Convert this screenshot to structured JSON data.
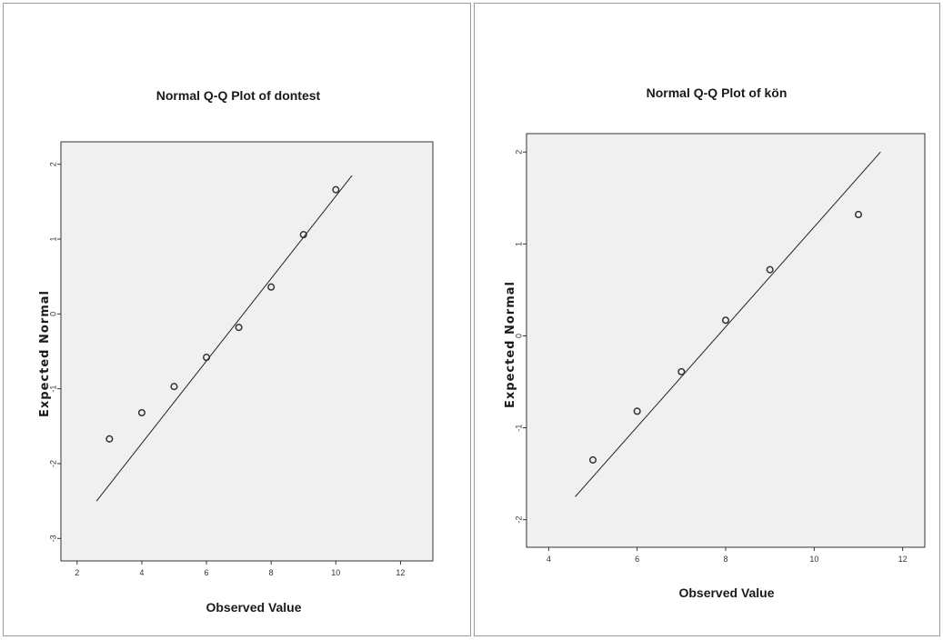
{
  "charts": [
    {
      "title": "Normal Q-Q Plot of dontest",
      "xlabel": "Observed Value",
      "ylabel": "Expected Normal",
      "x_ticks": [
        "2",
        "4",
        "6",
        "8",
        "10",
        "12"
      ],
      "y_ticks": [
        "2",
        "1",
        "0",
        "-1",
        "-2",
        "-3"
      ]
    },
    {
      "title": "Normal Q-Q Plot of kön",
      "xlabel": "Observed Value",
      "ylabel": "Expected Normal",
      "x_ticks": [
        "4",
        "6",
        "8",
        "10",
        "12"
      ],
      "y_ticks": [
        "2",
        "1",
        "0",
        "-1",
        "-2"
      ]
    }
  ],
  "chart_data": [
    {
      "type": "scatter",
      "title": "Normal Q-Q Plot of dontest",
      "xlabel": "Observed Value",
      "ylabel": "Expected Normal",
      "xlim": [
        1.5,
        13
      ],
      "ylim": [
        -3.3,
        2.3
      ],
      "x_ticks": [
        2,
        4,
        6,
        8,
        10,
        12
      ],
      "y_ticks": [
        2,
        1,
        0,
        -1,
        -2,
        -3
      ],
      "grid": false,
      "points": [
        {
          "x": 3,
          "y": -1.67
        },
        {
          "x": 4,
          "y": -1.32
        },
        {
          "x": 5,
          "y": -0.97
        },
        {
          "x": 6,
          "y": -0.58
        },
        {
          "x": 7,
          "y": -0.18
        },
        {
          "x": 8,
          "y": 0.36
        },
        {
          "x": 9,
          "y": 1.06
        },
        {
          "x": 10,
          "y": 1.66
        }
      ],
      "reference_line": {
        "x": [
          2.6,
          10.5
        ],
        "y": [
          -2.5,
          1.85
        ]
      },
      "plot_background": "#f0f0f0",
      "marker_color": "#333333"
    },
    {
      "type": "scatter",
      "title": "Normal Q-Q Plot of kön",
      "xlabel": "Observed Value",
      "ylabel": "Expected Normal",
      "xlim": [
        3.5,
        12.5
      ],
      "ylim": [
        -2.3,
        2.2
      ],
      "x_ticks": [
        4,
        6,
        8,
        10,
        12
      ],
      "y_ticks": [
        2,
        1,
        0,
        -1,
        -2
      ],
      "grid": false,
      "points": [
        {
          "x": 5,
          "y": -1.35
        },
        {
          "x": 6,
          "y": -0.82
        },
        {
          "x": 7,
          "y": -0.39
        },
        {
          "x": 8,
          "y": 0.17
        },
        {
          "x": 9,
          "y": 0.72
        },
        {
          "x": 11,
          "y": 1.32
        }
      ],
      "reference_line": {
        "x": [
          4.6,
          11.5
        ],
        "y": [
          -1.75,
          2.0
        ]
      },
      "plot_background": "#f0f0f0",
      "marker_color": "#333333"
    }
  ]
}
